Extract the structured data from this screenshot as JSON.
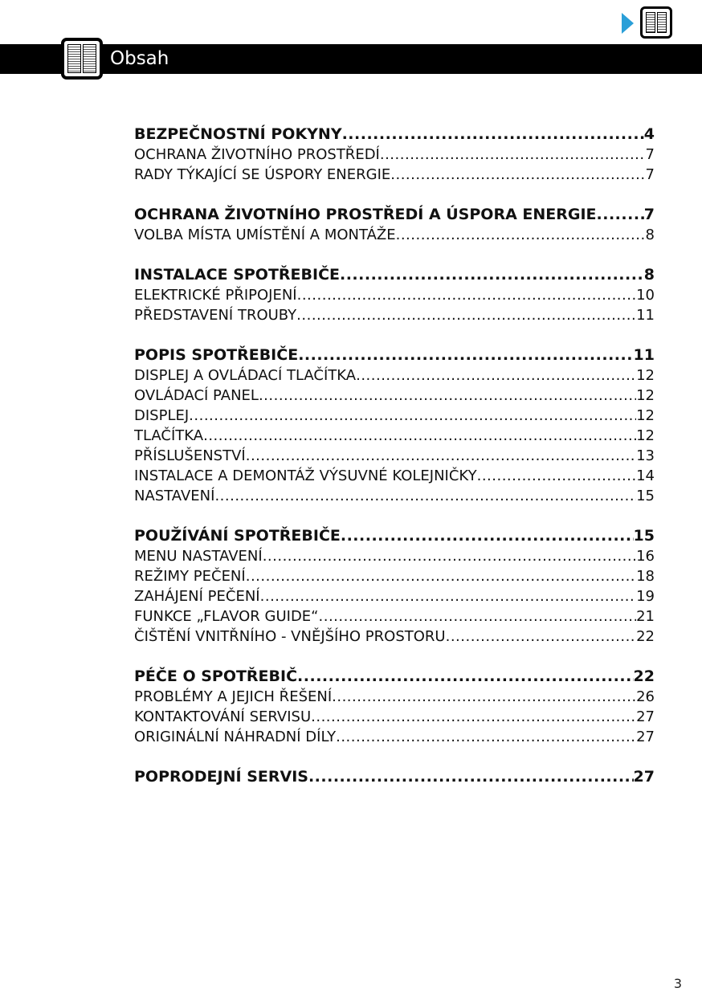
{
  "header": {
    "title": "Obsah",
    "icon": "book-icon",
    "nav_icon": "book-icon",
    "nav_arrow_color": "#2a9fd8"
  },
  "toc": [
    {
      "label": "BEZPEČNOSTNÍ POKYNY",
      "page": "4",
      "main": true
    },
    {
      "label": "OCHRANA ŽIVOTNÍHO PROSTŘEDÍ",
      "page": "7"
    },
    {
      "label": "RADY TÝKAJÍCÍ SE ÚSPORY ENERGIE",
      "page": "7"
    },
    null,
    {
      "label": "OCHRANA ŽIVOTNÍHO PROSTŘEDÍ A ÚSPORA ENERGIE",
      "page": "7",
      "main": true
    },
    {
      "label": "VOLBA MÍSTA UMÍSTĚNÍ A MONTÁŽE",
      "page": "8"
    },
    null,
    {
      "label": "INSTALACE SPOTŘEBIČE",
      "page": "8",
      "main": true
    },
    {
      "label": "ELEKTRICKÉ PŘIPOJENÍ",
      "page": "10"
    },
    {
      "label": "PŘEDSTAVENÍ TROUBY",
      "page": "11"
    },
    null,
    {
      "label": "POPIS SPOTŘEBIČE",
      "page": "11",
      "main": true
    },
    {
      "label": "DISPLEJ A OVLÁDACÍ TLAČÍTKA",
      "page": "12"
    },
    {
      "label": "OVLÁDACÍ PANEL",
      "page": "12"
    },
    {
      "label": "DISPLEJ",
      "page": "12"
    },
    {
      "label": "TLAČÍTKA",
      "page": "12"
    },
    {
      "label": "PŘÍSLUŠENSTVÍ",
      "page": "13"
    },
    {
      "label": "INSTALACE A DEMONTÁŽ VÝSUVNÉ KOLEJNIČKY",
      "page": "14"
    },
    {
      "label": "NASTAVENÍ",
      "page": "15"
    },
    null,
    {
      "label": "POUŽÍVÁNÍ SPOTŘEBIČE",
      "page": "15",
      "main": true
    },
    {
      "label": "MENU NASTAVENÍ",
      "page": "16"
    },
    {
      "label": "REŽIMY PEČENÍ",
      "page": "18"
    },
    {
      "label": "ZAHÁJENÍ PEČENÍ",
      "page": "19"
    },
    {
      "label": "FUNKCE „FLAVOR GUIDE“",
      "page": "21"
    },
    {
      "label": "ČIŠTĚNÍ VNITŘNÍHO - VNĚJŠÍHO PROSTORU",
      "page": "22"
    },
    null,
    {
      "label": "PÉČE O SPOTŘEBIČ",
      "page": "22",
      "main": true
    },
    {
      "label": "PROBLÉMY A JEJICH ŘEŠENÍ",
      "page": "26"
    },
    {
      "label": "KONTAKTOVÁNÍ SERVISU",
      "page": "27"
    },
    {
      "label": "ORIGINÁLNÍ NÁHRADNÍ DÍLY",
      "page": "27"
    },
    null,
    {
      "label": "POPRODEJNÍ SERVIS",
      "page": "27",
      "main": true
    }
  ],
  "footer": {
    "page_number": "3"
  }
}
